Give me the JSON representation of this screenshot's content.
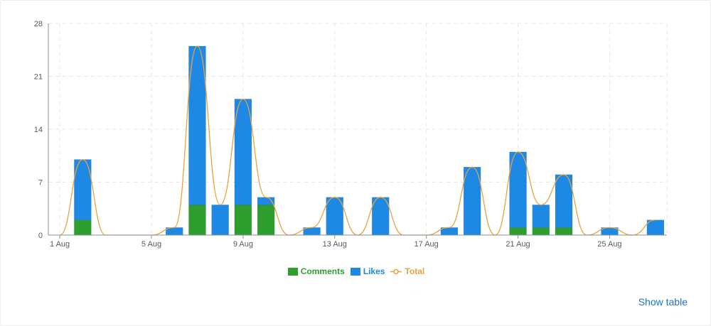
{
  "chart_data": {
    "type": "bar",
    "stacked": true,
    "categories": [
      "1 Aug",
      "2 Aug",
      "3 Aug",
      "4 Aug",
      "5 Aug",
      "6 Aug",
      "7 Aug",
      "8 Aug",
      "9 Aug",
      "10 Aug",
      "11 Aug",
      "12 Aug",
      "13 Aug",
      "14 Aug",
      "15 Aug",
      "16 Aug",
      "17 Aug",
      "18 Aug",
      "19 Aug",
      "20 Aug",
      "21 Aug",
      "22 Aug",
      "23 Aug",
      "24 Aug",
      "25 Aug",
      "26 Aug",
      "27 Aug"
    ],
    "x_tick_labels": [
      "1 Aug",
      "5 Aug",
      "9 Aug",
      "13 Aug",
      "17 Aug",
      "21 Aug",
      "25 Aug"
    ],
    "series": [
      {
        "name": "Comments",
        "color": "#2e9e2e",
        "values": [
          0,
          2,
          0,
          0,
          0,
          0,
          4,
          0,
          4,
          4,
          0,
          0,
          0,
          0,
          0,
          0,
          0,
          0,
          0,
          0,
          1,
          1,
          1,
          0,
          0,
          0,
          0
        ]
      },
      {
        "name": "Likes",
        "color": "#1e88e5",
        "values": [
          0,
          8,
          0,
          0,
          0,
          1,
          21,
          4,
          14,
          1,
          0,
          1,
          5,
          0,
          5,
          0,
          0,
          1,
          9,
          0,
          10,
          3,
          7,
          0,
          1,
          0,
          2
        ]
      },
      {
        "name": "Total",
        "type": "line",
        "color": "#e8a33d",
        "values": [
          0,
          10,
          0,
          0,
          0,
          1,
          25,
          4,
          18,
          5,
          0,
          1,
          5,
          0,
          5,
          0,
          0,
          1,
          9,
          0,
          11,
          4,
          8,
          0,
          1,
          0,
          2
        ]
      }
    ],
    "y_ticks": [
      0,
      7,
      14,
      21,
      28
    ],
    "ylim": [
      0,
      28
    ],
    "grid": true,
    "legend_position": "bottom"
  },
  "legend": {
    "comments_label": "Comments",
    "likes_label": "Likes",
    "total_label": "Total"
  },
  "actions": {
    "show_table_label": "Show table"
  }
}
